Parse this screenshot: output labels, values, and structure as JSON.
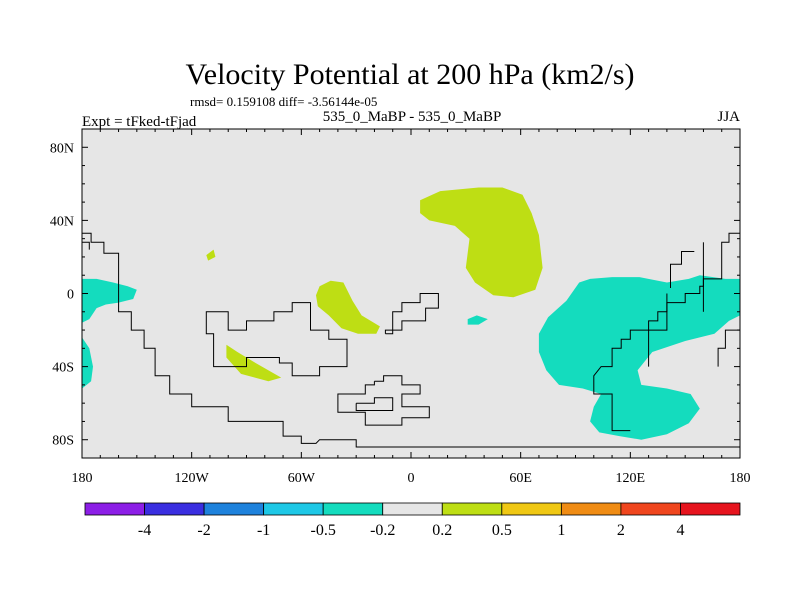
{
  "chart_data": {
    "type": "map",
    "title": "Velocity Potential at 200 hPa (km2/s)",
    "stats_text": "rmsd= 0.159108 diff= -3.56144e-05",
    "left_label": "Expt = tFked-tFjad",
    "center_label": "535_0_MaBP - 535_0_MaBP",
    "right_label": "JJA",
    "lon_range": [
      -180,
      180
    ],
    "lat_range": [
      -90,
      90
    ],
    "x_ticks": [
      {
        "value": -180,
        "label": "180"
      },
      {
        "value": -120,
        "label": "120W"
      },
      {
        "value": -60,
        "label": "60W"
      },
      {
        "value": 0,
        "label": "0"
      },
      {
        "value": 60,
        "label": "60E"
      },
      {
        "value": 120,
        "label": "120E"
      },
      {
        "value": 180,
        "label": "180"
      }
    ],
    "y_ticks": [
      {
        "value": 80,
        "label": "80N"
      },
      {
        "value": 40,
        "label": "40N"
      },
      {
        "value": 0,
        "label": "0"
      },
      {
        "value": -40,
        "label": "40S"
      },
      {
        "value": -80,
        "label": "80S"
      }
    ],
    "colorbar": {
      "colors": [
        "#8c1ee6",
        "#3a2ee0",
        "#1e82dc",
        "#1ec8e6",
        "#14dcbe",
        "#e6e6e6",
        "#bede14",
        "#f0c814",
        "#f08c14",
        "#f0461e",
        "#e6141e"
      ],
      "labels": [
        "-4",
        "-2",
        "-1",
        "-0.5",
        "-0.2",
        "0.2",
        "0.5",
        "1",
        "2",
        "4"
      ]
    },
    "background_color": "#e6e6e6",
    "regions": [
      {
        "level": "-0.5 to -0.2",
        "color": "#14dcbe",
        "lonlat": [
          [
            -180,
            8
          ],
          [
            -172,
            8
          ],
          [
            -163,
            6
          ],
          [
            -155,
            4
          ],
          [
            -150,
            2
          ],
          [
            -152,
            -3
          ],
          [
            -160,
            -5
          ],
          [
            -167,
            -6
          ],
          [
            -172,
            -8
          ],
          [
            -176,
            -14
          ],
          [
            -180,
            -16
          ]
        ]
      },
      {
        "level": "-0.5 to -0.2",
        "color": "#14dcbe",
        "lonlat": [
          [
            -180,
            -24
          ],
          [
            -176,
            -30
          ],
          [
            -174,
            -40
          ],
          [
            -175,
            -48
          ],
          [
            -180,
            -52
          ]
        ]
      },
      {
        "level": "-0.5 to -0.2",
        "color": "#14dcbe",
        "lonlat": [
          [
            180,
            8
          ],
          [
            172,
            8
          ],
          [
            158,
            10
          ],
          [
            152,
            8
          ],
          [
            140,
            6
          ],
          [
            125,
            9
          ],
          [
            110,
            9
          ],
          [
            98,
            8
          ],
          [
            92,
            6
          ],
          [
            85,
            -4
          ],
          [
            75,
            -13
          ],
          [
            70,
            -22
          ],
          [
            70,
            -32
          ],
          [
            74,
            -42
          ],
          [
            81,
            -50
          ],
          [
            94,
            -52
          ],
          [
            104,
            -55
          ],
          [
            100,
            -62
          ],
          [
            98,
            -70
          ],
          [
            103,
            -76
          ],
          [
            114,
            -78
          ],
          [
            126,
            -80
          ],
          [
            140,
            -77
          ],
          [
            152,
            -71
          ],
          [
            158,
            -63
          ],
          [
            153,
            -55
          ],
          [
            140,
            -52
          ],
          [
            126,
            -50
          ],
          [
            124,
            -42
          ],
          [
            132,
            -32
          ],
          [
            150,
            -26
          ],
          [
            166,
            -22
          ],
          [
            174,
            -15
          ],
          [
            180,
            -12
          ]
        ]
      },
      {
        "level": "-0.5 to -0.2",
        "color": "#14dcbe",
        "lonlat": [
          [
            31,
            -14
          ],
          [
            36,
            -12
          ],
          [
            42,
            -14
          ],
          [
            37,
            -17
          ],
          [
            31,
            -17
          ]
        ]
      },
      {
        "level": "0.2 to 0.5",
        "color": "#bede14",
        "lonlat": [
          [
            5,
            51
          ],
          [
            16,
            56
          ],
          [
            37,
            58
          ],
          [
            50,
            58
          ],
          [
            61,
            54
          ],
          [
            66,
            44
          ],
          [
            70,
            32
          ],
          [
            72,
            14
          ],
          [
            68,
            2
          ],
          [
            56,
            -2
          ],
          [
            45,
            -1
          ],
          [
            35,
            6
          ],
          [
            30,
            14
          ],
          [
            32,
            30
          ],
          [
            24,
            37
          ],
          [
            10,
            40
          ],
          [
            5,
            44
          ]
        ]
      },
      {
        "level": "0.2 to 0.5",
        "color": "#bede14",
        "lonlat": [
          [
            -112,
            21
          ],
          [
            -108,
            24
          ],
          [
            -107,
            20
          ],
          [
            -111,
            18
          ]
        ]
      },
      {
        "level": "0.2 to 0.5",
        "color": "#bede14",
        "lonlat": [
          [
            -50,
            4
          ],
          [
            -44,
            7
          ],
          [
            -37,
            6
          ],
          [
            -32,
            -4
          ],
          [
            -27,
            -12
          ],
          [
            -17,
            -18
          ],
          [
            -19,
            -22
          ],
          [
            -29,
            -22
          ],
          [
            -38,
            -19
          ],
          [
            -45,
            -12
          ],
          [
            -51,
            -7
          ],
          [
            -52,
            -1
          ]
        ]
      },
      {
        "level": "0.2 to 0.5",
        "color": "#bede14",
        "lonlat": [
          [
            -101,
            -28
          ],
          [
            -95,
            -32
          ],
          [
            -85,
            -38
          ],
          [
            -71,
            -46
          ],
          [
            -78,
            -48
          ],
          [
            -93,
            -44
          ],
          [
            -101,
            -35
          ]
        ]
      }
    ],
    "coastlines": [
      {
        "lonlat": [
          [
            -180,
            33
          ],
          [
            -175,
            33
          ],
          [
            -175,
            28
          ],
          [
            -168,
            28
          ],
          [
            -168,
            22
          ],
          [
            -160,
            22
          ],
          [
            -160,
            -2
          ],
          [
            -160,
            -10
          ],
          [
            -153,
            -10
          ],
          [
            -153,
            -20
          ],
          [
            -146,
            -20
          ],
          [
            -146,
            -30
          ],
          [
            -140,
            -30
          ],
          [
            -140,
            -45
          ],
          [
            -132,
            -45
          ],
          [
            -132,
            -55
          ],
          [
            -120,
            -55
          ],
          [
            -120,
            -62
          ],
          [
            -100,
            -62
          ],
          [
            -100,
            -70
          ],
          [
            -70,
            -70
          ],
          [
            -70,
            -78
          ],
          [
            -60,
            -78
          ],
          [
            -60,
            -82
          ],
          [
            -52,
            -82
          ],
          [
            -50,
            -80
          ],
          [
            -30,
            -80
          ],
          [
            -30,
            -84
          ],
          [
            180,
            -84
          ]
        ]
      },
      {
        "lonlat": [
          [
            -180,
            28
          ],
          [
            -176,
            28
          ],
          [
            -176,
            24
          ]
        ]
      },
      {
        "lonlat": [
          [
            -110,
            -10
          ],
          [
            -100,
            -10
          ],
          [
            -100,
            -20
          ],
          [
            -90,
            -20
          ],
          [
            -90,
            -15
          ],
          [
            -75,
            -15
          ],
          [
            -75,
            -10
          ],
          [
            -65,
            -10
          ],
          [
            -65,
            -5
          ],
          [
            -55,
            -5
          ],
          [
            -55,
            -20
          ],
          [
            -45,
            -20
          ],
          [
            -45,
            -25
          ],
          [
            -35,
            -25
          ],
          [
            -35,
            -40
          ],
          [
            -50,
            -40
          ],
          [
            -50,
            -45
          ],
          [
            -65,
            -45
          ],
          [
            -65,
            -38
          ],
          [
            -72,
            -38
          ],
          [
            -72,
            -35
          ],
          [
            -90,
            -35
          ],
          [
            -90,
            -40
          ],
          [
            -108,
            -40
          ],
          [
            -108,
            -22
          ],
          [
            -112,
            -22
          ],
          [
            -112,
            -10
          ],
          [
            -110,
            -10
          ]
        ]
      },
      {
        "lonlat": [
          [
            -14,
            -22
          ],
          [
            -10,
            -22
          ],
          [
            -10,
            -10
          ],
          [
            -5,
            -10
          ],
          [
            -5,
            -5
          ],
          [
            5,
            -5
          ],
          [
            5,
            0
          ],
          [
            15,
            0
          ],
          [
            15,
            -8
          ],
          [
            8,
            -8
          ],
          [
            8,
            -15
          ],
          [
            -5,
            -15
          ],
          [
            -5,
            -20
          ],
          [
            -14,
            -20
          ],
          [
            -14,
            -22
          ]
        ]
      },
      {
        "lonlat": [
          [
            -20,
            -48
          ],
          [
            -15,
            -48
          ],
          [
            -15,
            -45
          ],
          [
            -5,
            -45
          ],
          [
            -5,
            -50
          ],
          [
            5,
            -50
          ],
          [
            5,
            -55
          ],
          [
            -5,
            -55
          ],
          [
            -5,
            -62
          ],
          [
            10,
            -62
          ],
          [
            10,
            -68
          ],
          [
            -5,
            -68
          ],
          [
            -5,
            -72
          ],
          [
            -25,
            -72
          ],
          [
            -25,
            -65
          ],
          [
            -40,
            -65
          ],
          [
            -40,
            -55
          ],
          [
            -25,
            -55
          ],
          [
            -25,
            -50
          ],
          [
            -20,
            -50
          ],
          [
            -20,
            -48
          ]
        ]
      },
      {
        "lonlat": [
          [
            -30,
            -60
          ],
          [
            -20,
            -60
          ],
          [
            -20,
            -57
          ],
          [
            -10,
            -57
          ],
          [
            -10,
            -64
          ],
          [
            -30,
            -64
          ],
          [
            -30,
            -60
          ]
        ]
      },
      {
        "lonlat": [
          [
            180,
            33
          ],
          [
            174,
            33
          ],
          [
            174,
            28
          ],
          [
            170,
            28
          ],
          [
            170,
            8
          ],
          [
            160,
            8
          ],
          [
            160,
            4
          ],
          [
            158,
            4
          ],
          [
            158,
            0
          ],
          [
            150,
            0
          ],
          [
            150,
            -5
          ],
          [
            140,
            -5
          ],
          [
            140,
            -10
          ],
          [
            135,
            -10
          ],
          [
            135,
            -15
          ],
          [
            130,
            -15
          ],
          [
            130,
            -20
          ],
          [
            120,
            -20
          ],
          [
            120,
            -25
          ],
          [
            115,
            -25
          ],
          [
            115,
            -30
          ],
          [
            110,
            -30
          ],
          [
            110,
            -40
          ],
          [
            104,
            -40
          ],
          [
            100,
            -45
          ],
          [
            100,
            -55
          ],
          [
            110,
            -55
          ],
          [
            110,
            -65
          ],
          [
            110,
            -75
          ],
          [
            120,
            -75
          ]
        ]
      },
      {
        "lonlat": [
          [
            155,
            23
          ],
          [
            148,
            23
          ],
          [
            148,
            16
          ],
          [
            142,
            16
          ],
          [
            142,
            3
          ]
        ]
      },
      {
        "lonlat": [
          [
            140,
            0
          ],
          [
            140,
            -20
          ],
          [
            130,
            -20
          ],
          [
            130,
            -40
          ]
        ]
      },
      {
        "lonlat": [
          [
            160,
            28
          ],
          [
            160,
            -10
          ]
        ]
      },
      {
        "lonlat": [
          [
            180,
            -20
          ],
          [
            172,
            -20
          ],
          [
            172,
            -30
          ],
          [
            168,
            -30
          ],
          [
            168,
            -40
          ]
        ]
      }
    ]
  }
}
